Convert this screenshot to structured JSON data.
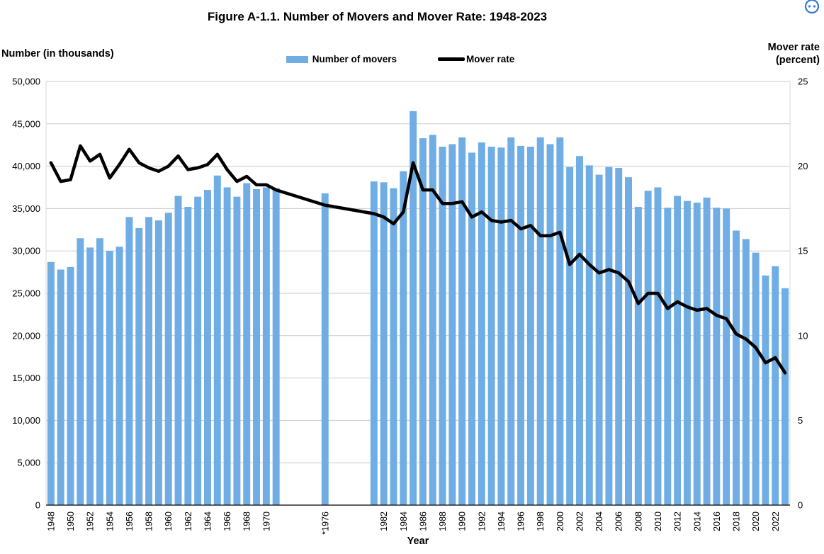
{
  "chart_data": {
    "type": "combo_bar_line",
    "title": "Figure A-1.1. Number of Movers and Mover Rate: 1948-2023",
    "xlabel": "Year",
    "ylabel_left": "Number (in thousands)",
    "ylabel_right_line1": "Mover rate",
    "ylabel_right_line2": "(percent)",
    "ylim_left": [
      0,
      50000
    ],
    "ystep_left": 5000,
    "ylim_right": [
      0,
      25
    ],
    "ystep_right": 5,
    "grid": true,
    "legend_position": "top",
    "x_tick_labels": [
      "1948",
      "1950",
      "1952",
      "1954",
      "1956",
      "1958",
      "1960",
      "1962",
      "1964",
      "1966",
      "1968",
      "1970",
      "*1976",
      "1982",
      "1984",
      "1986",
      "1988",
      "1990",
      "1992",
      "1994",
      "1996",
      "1998",
      "2000",
      "2002",
      "2004",
      "2006",
      "2008",
      "2010",
      "2012",
      "2014",
      "2016",
      "2018",
      "2020",
      "2022"
    ],
    "series": [
      {
        "name": "Number of movers",
        "type": "bar",
        "axis": "left"
      },
      {
        "name": "Mover rate",
        "type": "line",
        "axis": "right"
      }
    ],
    "points": [
      {
        "year": 1948,
        "movers": 28700,
        "rate": 20.2
      },
      {
        "year": 1949,
        "movers": 27800,
        "rate": 19.1
      },
      {
        "year": 1950,
        "movers": 28100,
        "rate": 19.2
      },
      {
        "year": 1951,
        "movers": 31500,
        "rate": 21.2
      },
      {
        "year": 1952,
        "movers": 30400,
        "rate": 20.3
      },
      {
        "year": 1953,
        "movers": 31500,
        "rate": 20.7
      },
      {
        "year": 1954,
        "movers": 30000,
        "rate": 19.3
      },
      {
        "year": 1955,
        "movers": 30500,
        "rate": 20.1
      },
      {
        "year": 1956,
        "movers": 34000,
        "rate": 21.0
      },
      {
        "year": 1957,
        "movers": 32700,
        "rate": 20.2
      },
      {
        "year": 1958,
        "movers": 34000,
        "rate": 19.9
      },
      {
        "year": 1959,
        "movers": 33600,
        "rate": 19.7
      },
      {
        "year": 1960,
        "movers": 34500,
        "rate": 20.0
      },
      {
        "year": 1961,
        "movers": 36500,
        "rate": 20.6
      },
      {
        "year": 1962,
        "movers": 35200,
        "rate": 19.8
      },
      {
        "year": 1963,
        "movers": 36400,
        "rate": 19.9
      },
      {
        "year": 1964,
        "movers": 37200,
        "rate": 20.1
      },
      {
        "year": 1965,
        "movers": 38900,
        "rate": 20.7
      },
      {
        "year": 1966,
        "movers": 37500,
        "rate": 19.8
      },
      {
        "year": 1967,
        "movers": 36400,
        "rate": 19.1
      },
      {
        "year": 1968,
        "movers": 38000,
        "rate": 19.4
      },
      {
        "year": 1969,
        "movers": 37300,
        "rate": 18.9
      },
      {
        "year": 1970,
        "movers": 37500,
        "rate": 18.9
      },
      {
        "year": 1971,
        "movers": 37400,
        "rate": 18.6
      },
      {
        "year": 1972,
        "movers": null,
        "rate": null
      },
      {
        "year": 1973,
        "movers": null,
        "rate": null
      },
      {
        "year": 1974,
        "movers": null,
        "rate": null
      },
      {
        "year": 1975,
        "movers": null,
        "rate": null
      },
      {
        "year": 1976,
        "movers": 36800,
        "rate": 17.7
      },
      {
        "year": 1977,
        "movers": null,
        "rate": null
      },
      {
        "year": 1978,
        "movers": null,
        "rate": null
      },
      {
        "year": 1979,
        "movers": null,
        "rate": null
      },
      {
        "year": 1980,
        "movers": null,
        "rate": null
      },
      {
        "year": 1981,
        "movers": 38200,
        "rate": 17.2
      },
      {
        "year": 1982,
        "movers": 38100,
        "rate": 17.0
      },
      {
        "year": 1983,
        "movers": 37400,
        "rate": 16.6
      },
      {
        "year": 1984,
        "movers": 39400,
        "rate": 17.3
      },
      {
        "year": 1985,
        "movers": 46500,
        "rate": 20.2
      },
      {
        "year": 1986,
        "movers": 43300,
        "rate": 18.6
      },
      {
        "year": 1987,
        "movers": 43700,
        "rate": 18.6
      },
      {
        "year": 1988,
        "movers": 42300,
        "rate": 17.8
      },
      {
        "year": 1989,
        "movers": 42600,
        "rate": 17.8
      },
      {
        "year": 1990,
        "movers": 43400,
        "rate": 17.9
      },
      {
        "year": 1991,
        "movers": 41600,
        "rate": 17.0
      },
      {
        "year": 1992,
        "movers": 42800,
        "rate": 17.3
      },
      {
        "year": 1993,
        "movers": 42300,
        "rate": 16.8
      },
      {
        "year": 1994,
        "movers": 42200,
        "rate": 16.7
      },
      {
        "year": 1995,
        "movers": 43400,
        "rate": 16.8
      },
      {
        "year": 1996,
        "movers": 42400,
        "rate": 16.3
      },
      {
        "year": 1997,
        "movers": 42300,
        "rate": 16.5
      },
      {
        "year": 1998,
        "movers": 43400,
        "rate": 15.9
      },
      {
        "year": 1999,
        "movers": 42600,
        "rate": 15.9
      },
      {
        "year": 2000,
        "movers": 43400,
        "rate": 16.1
      },
      {
        "year": 2001,
        "movers": 39900,
        "rate": 14.2
      },
      {
        "year": 2002,
        "movers": 41200,
        "rate": 14.8
      },
      {
        "year": 2003,
        "movers": 40100,
        "rate": 14.2
      },
      {
        "year": 2004,
        "movers": 39000,
        "rate": 13.7
      },
      {
        "year": 2005,
        "movers": 39900,
        "rate": 13.9
      },
      {
        "year": 2006,
        "movers": 39800,
        "rate": 13.7
      },
      {
        "year": 2007,
        "movers": 38700,
        "rate": 13.2
      },
      {
        "year": 2008,
        "movers": 35200,
        "rate": 11.9
      },
      {
        "year": 2009,
        "movers": 37100,
        "rate": 12.5
      },
      {
        "year": 2010,
        "movers": 37500,
        "rate": 12.5
      },
      {
        "year": 2011,
        "movers": 35100,
        "rate": 11.6
      },
      {
        "year": 2012,
        "movers": 36500,
        "rate": 12.0
      },
      {
        "year": 2013,
        "movers": 35900,
        "rate": 11.7
      },
      {
        "year": 2014,
        "movers": 35700,
        "rate": 11.5
      },
      {
        "year": 2015,
        "movers": 36300,
        "rate": 11.6
      },
      {
        "year": 2016,
        "movers": 35100,
        "rate": 11.2
      },
      {
        "year": 2017,
        "movers": 35000,
        "rate": 11.0
      },
      {
        "year": 2018,
        "movers": 32400,
        "rate": 10.1
      },
      {
        "year": 2019,
        "movers": 31400,
        "rate": 9.8
      },
      {
        "year": 2020,
        "movers": 29800,
        "rate": 9.3
      },
      {
        "year": 2021,
        "movers": 27100,
        "rate": 8.4
      },
      {
        "year": 2022,
        "movers": 28200,
        "rate": 8.7
      },
      {
        "year": 2023,
        "movers": 25600,
        "rate": 7.8
      }
    ]
  },
  "colors": {
    "bar": "#6FADE4",
    "line": "#000000",
    "grid": "#C9C9C9",
    "axis": "#000000",
    "side_border": "#D9D9D9",
    "icon_blue": "#3575D3"
  }
}
